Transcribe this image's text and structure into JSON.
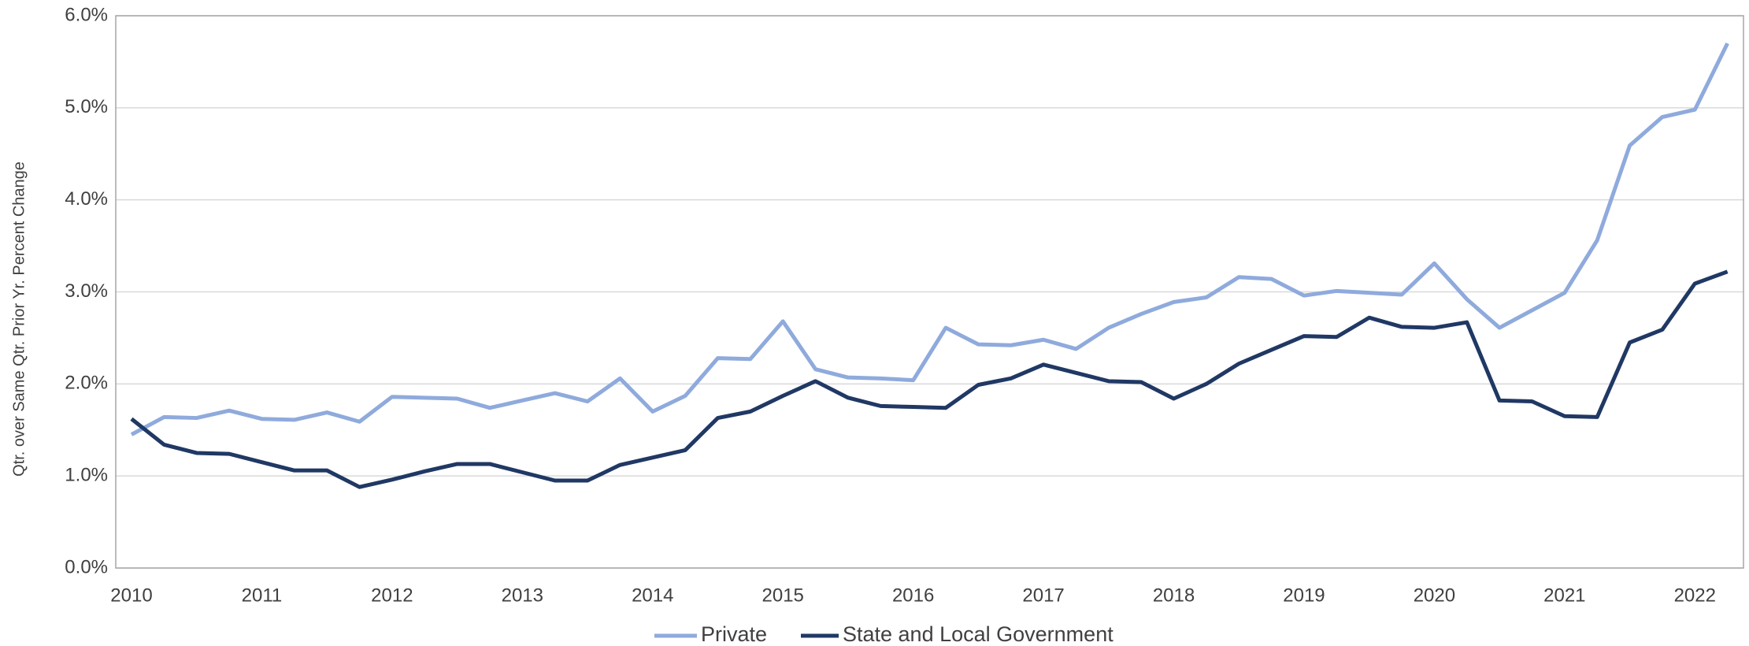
{
  "chart_data": {
    "type": "line",
    "y_label": "Qtr. over Same Qtr. Prior Yr. Percent Change",
    "categories": [
      "2010",
      null,
      null,
      null,
      "2011",
      null,
      null,
      null,
      "2012",
      null,
      null,
      null,
      "2013",
      null,
      null,
      null,
      "2014",
      null,
      null,
      null,
      "2015",
      null,
      null,
      null,
      "2016",
      null,
      null,
      null,
      "2017",
      null,
      null,
      null,
      "2018",
      null,
      null,
      null,
      "2019",
      null,
      null,
      null,
      "2020",
      null,
      null,
      null,
      "2021",
      null,
      null,
      null,
      "2022",
      null
    ],
    "series": [
      {
        "name": "Private",
        "color": "#8faadc",
        "values": [
          1.45,
          1.64,
          1.63,
          1.71,
          1.62,
          1.61,
          1.69,
          1.59,
          1.86,
          1.85,
          1.84,
          1.74,
          1.82,
          1.9,
          1.81,
          2.06,
          1.7,
          1.87,
          2.28,
          2.27,
          2.68,
          2.16,
          2.07,
          2.06,
          2.04,
          2.61,
          2.43,
          2.42,
          2.48,
          2.38,
          2.61,
          2.76,
          2.89,
          2.94,
          3.16,
          3.14,
          2.96,
          3.01,
          2.99,
          2.97,
          3.31,
          2.92,
          2.61,
          2.8,
          2.99,
          3.56,
          4.59,
          4.9,
          4.98,
          5.7
        ]
      },
      {
        "name": "State and Local Government",
        "color": "#203864",
        "values": [
          1.62,
          1.34,
          1.25,
          1.24,
          1.15,
          1.06,
          1.06,
          0.88,
          0.96,
          1.05,
          1.13,
          1.13,
          1.04,
          0.95,
          0.95,
          1.12,
          1.2,
          1.28,
          1.63,
          1.7,
          1.87,
          2.03,
          1.85,
          1.76,
          1.75,
          1.74,
          1.99,
          2.06,
          2.21,
          2.12,
          2.03,
          2.02,
          1.84,
          2.0,
          2.22,
          2.37,
          2.52,
          2.51,
          2.72,
          2.62,
          2.61,
          2.67,
          1.82,
          1.81,
          1.65,
          1.64,
          2.45,
          2.59,
          3.09,
          3.22
        ]
      }
    ],
    "ylim": [
      0,
      6
    ],
    "yticks": [
      {
        "value": 0,
        "label": "0.0%"
      },
      {
        "value": 1,
        "label": "1.0%"
      },
      {
        "value": 2,
        "label": "2.0%"
      },
      {
        "value": 3,
        "label": "3.0%"
      },
      {
        "value": 4,
        "label": "4.0%"
      },
      {
        "value": 5,
        "label": "5.0%"
      },
      {
        "value": 6,
        "label": "6.0%"
      }
    ],
    "grid": true,
    "legend": "bottom"
  }
}
